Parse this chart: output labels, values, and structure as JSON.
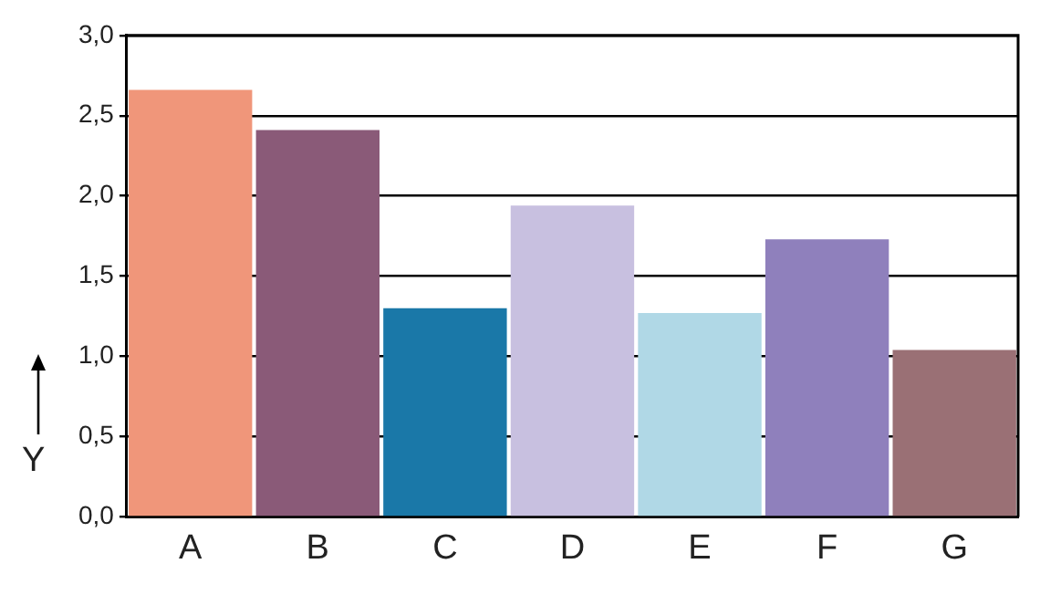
{
  "chart_data": {
    "type": "bar",
    "ylabel": "Y",
    "categories": [
      "A",
      "B",
      "C",
      "D",
      "E",
      "F",
      "G"
    ],
    "values": [
      2.66,
      2.41,
      1.3,
      1.94,
      1.27,
      1.73,
      1.04
    ],
    "colors": [
      "#f0967a",
      "#8a5a78",
      "#1a78a8",
      "#c8c0e0",
      "#b0d8e6",
      "#8f80bc",
      "#9a7075"
    ],
    "ylim": [
      0,
      3
    ],
    "yticks": [
      {
        "value": 0,
        "label": "0,0"
      },
      {
        "value": 0.5,
        "label": "0,5"
      },
      {
        "value": 1,
        "label": "1,0"
      },
      {
        "value": 1.5,
        "label": "1,5"
      },
      {
        "value": 2,
        "label": "2,0"
      },
      {
        "value": 2.5,
        "label": "2,5"
      },
      {
        "value": 3,
        "label": "3,0"
      }
    ],
    "grid": "y",
    "legend": false
  }
}
